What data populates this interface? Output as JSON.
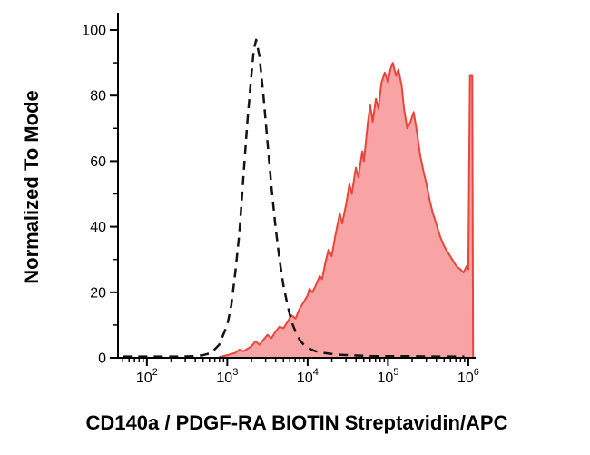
{
  "figure": {
    "kind": "flow-cytometry-histogram"
  },
  "chart_data": {
    "type": "area",
    "title": "",
    "xlabel": "CD140a / PDGF-RA BIOTIN Streptavidin/APC",
    "ylabel": "Normalized To Mode",
    "x_scale": "log10",
    "x_range_log10": [
      1.64,
      6.08
    ],
    "ylim": [
      0,
      100
    ],
    "y_ticks": [
      0,
      20,
      40,
      60,
      80,
      100
    ],
    "y_minor_ticks": [
      10,
      30,
      50,
      70,
      90
    ],
    "x_major_tick_exponents": [
      2,
      3,
      4,
      5,
      6
    ],
    "x_tick_base": "10",
    "grid": false,
    "legend": "none",
    "series": [
      {
        "name": "control-unstained",
        "style": "dashed-line",
        "color": "#141414",
        "peak": {
          "x_log10": 3.36,
          "y": 97
        },
        "points_log10x_y": [
          [
            1.7,
            0.4
          ],
          [
            2.1,
            0.4
          ],
          [
            2.45,
            0.4
          ],
          [
            2.6,
            0.5
          ],
          [
            2.7,
            0.8
          ],
          [
            2.8,
            1.5
          ],
          [
            2.9,
            4
          ],
          [
            3.0,
            10
          ],
          [
            3.05,
            16
          ],
          [
            3.1,
            26
          ],
          [
            3.15,
            38
          ],
          [
            3.2,
            55
          ],
          [
            3.25,
            72
          ],
          [
            3.3,
            86
          ],
          [
            3.33,
            94
          ],
          [
            3.36,
            97
          ],
          [
            3.4,
            92
          ],
          [
            3.45,
            80
          ],
          [
            3.5,
            66
          ],
          [
            3.55,
            52
          ],
          [
            3.6,
            40
          ],
          [
            3.65,
            30
          ],
          [
            3.7,
            22
          ],
          [
            3.75,
            16
          ],
          [
            3.8,
            11
          ],
          [
            3.85,
            8
          ],
          [
            3.9,
            5.5
          ],
          [
            3.95,
            4
          ],
          [
            4.0,
            3
          ],
          [
            4.05,
            2.5
          ],
          [
            4.1,
            2
          ],
          [
            4.2,
            1.5
          ],
          [
            4.35,
            1
          ],
          [
            4.5,
            0.8
          ],
          [
            4.8,
            0.5
          ],
          [
            5.2,
            0.5
          ],
          [
            5.6,
            0.4
          ],
          [
            5.95,
            0.4
          ]
        ]
      },
      {
        "name": "CD140a-PDGF-RA-BIOTIN-Streptavidin-APC-stained",
        "style": "filled-area",
        "stroke": "#e8463c",
        "fill": "#f79a9a",
        "peak": {
          "x_log10": 5.06,
          "y": 90
        },
        "edge_spike": {
          "x_log10": 6.03,
          "y": 86
        },
        "points_log10x_y": [
          [
            2.9,
            0.2
          ],
          [
            3.0,
            0.8
          ],
          [
            3.1,
            1.5
          ],
          [
            3.15,
            2.5
          ],
          [
            3.2,
            2
          ],
          [
            3.3,
            3.5
          ],
          [
            3.35,
            5
          ],
          [
            3.4,
            4
          ],
          [
            3.45,
            5.5
          ],
          [
            3.5,
            7
          ],
          [
            3.55,
            6
          ],
          [
            3.6,
            8
          ],
          [
            3.65,
            9.5
          ],
          [
            3.7,
            9
          ],
          [
            3.75,
            11
          ],
          [
            3.8,
            13
          ],
          [
            3.85,
            12
          ],
          [
            3.9,
            15
          ],
          [
            3.95,
            17
          ],
          [
            4.0,
            19
          ],
          [
            4.02,
            21
          ],
          [
            4.06,
            20
          ],
          [
            4.1,
            22
          ],
          [
            4.15,
            25
          ],
          [
            4.18,
            24
          ],
          [
            4.22,
            29
          ],
          [
            4.26,
            33
          ],
          [
            4.3,
            31
          ],
          [
            4.35,
            38
          ],
          [
            4.4,
            44
          ],
          [
            4.43,
            41
          ],
          [
            4.48,
            47
          ],
          [
            4.52,
            53
          ],
          [
            4.55,
            50
          ],
          [
            4.6,
            58
          ],
          [
            4.63,
            55
          ],
          [
            4.68,
            63
          ],
          [
            4.7,
            60
          ],
          [
            4.75,
            72
          ],
          [
            4.78,
            77
          ],
          [
            4.81,
            72
          ],
          [
            4.85,
            79
          ],
          [
            4.88,
            76
          ],
          [
            4.92,
            84
          ],
          [
            4.96,
            87
          ],
          [
            5.0,
            84
          ],
          [
            5.03,
            88
          ],
          [
            5.06,
            90
          ],
          [
            5.1,
            86
          ],
          [
            5.13,
            88
          ],
          [
            5.17,
            83
          ],
          [
            5.2,
            76
          ],
          [
            5.24,
            70
          ],
          [
            5.28,
            72
          ],
          [
            5.32,
            75
          ],
          [
            5.36,
            69
          ],
          [
            5.4,
            62
          ],
          [
            5.44,
            57
          ],
          [
            5.48,
            53
          ],
          [
            5.52,
            48
          ],
          [
            5.56,
            44
          ],
          [
            5.6,
            41
          ],
          [
            5.65,
            37
          ],
          [
            5.7,
            34
          ],
          [
            5.75,
            32
          ],
          [
            5.8,
            30
          ],
          [
            5.85,
            28
          ],
          [
            5.9,
            27
          ],
          [
            5.94,
            26
          ],
          [
            5.98,
            28
          ],
          [
            6.0,
            27
          ],
          [
            6.02,
            86
          ],
          [
            6.05,
            86
          ],
          [
            6.06,
            0
          ]
        ]
      }
    ]
  }
}
